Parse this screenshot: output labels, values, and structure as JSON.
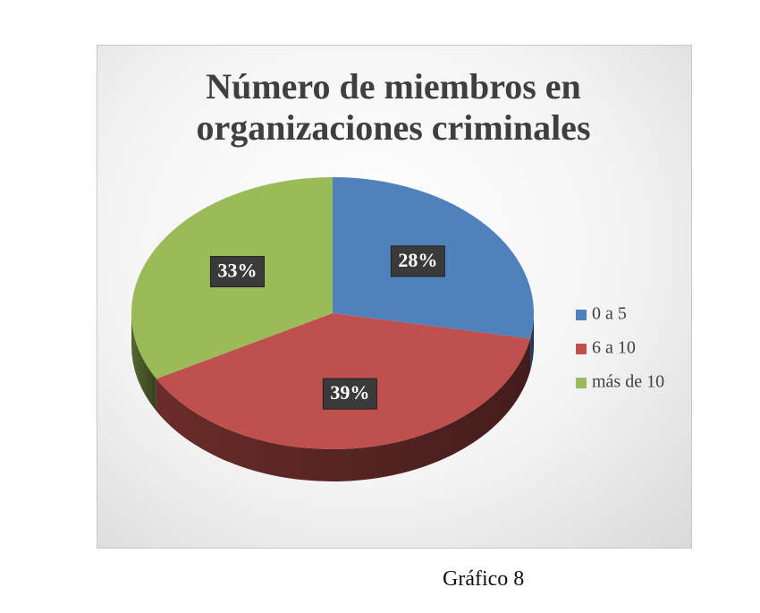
{
  "chart_data": {
    "type": "pie",
    "title": "Número de miembros en organizaciones criminales",
    "categories": [
      "0 a 5",
      "6 a 10",
      "más de 10"
    ],
    "values": [
      28,
      39,
      33
    ],
    "value_labels": [
      "28%",
      "39%",
      "33%"
    ],
    "colors": [
      "#4f81bd",
      "#c0504d",
      "#9bbb59"
    ],
    "legend": "right"
  },
  "caption": "Gráfico 8"
}
